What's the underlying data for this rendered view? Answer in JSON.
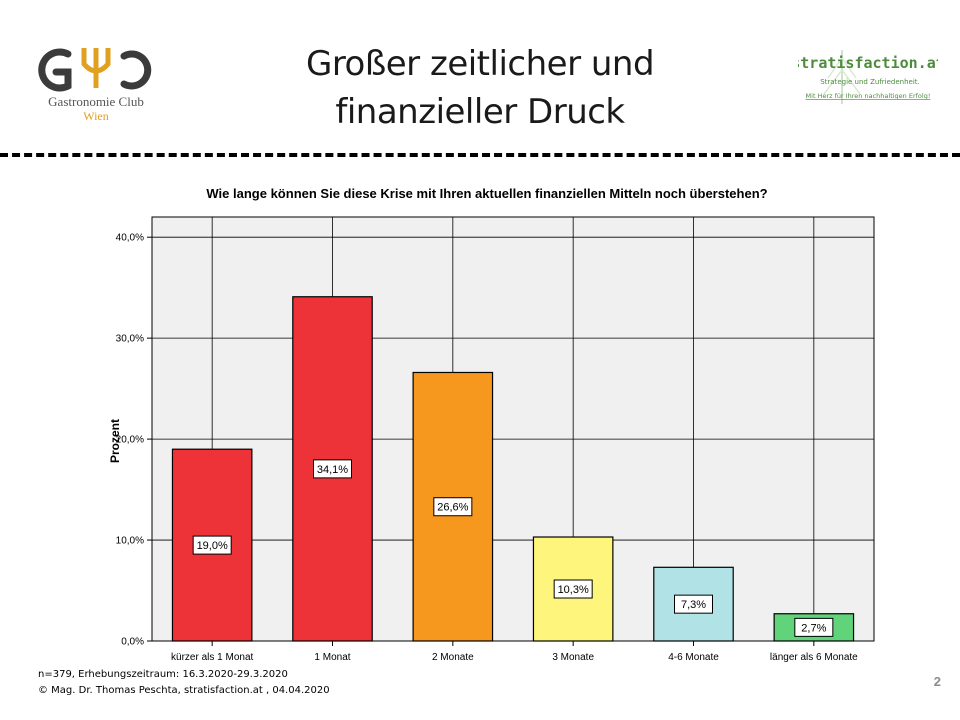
{
  "slide": {
    "title_line1": "Großer zeitlicher und",
    "title_line2": "finanzieller Druck",
    "page_number": "2"
  },
  "logo_left": {
    "name": "Gastronomie Club Wien logo",
    "text_line1": "Gastronomie Club",
    "text_line2": "Wien",
    "color_gold": "#e0a020",
    "color_gray": "#555555"
  },
  "logo_right": {
    "name": "stratisfaction.at logo",
    "brand": "stratisfaction.at",
    "tagline1": "Strategie und Zufriedenheit.",
    "tagline2": "Mit Herz für Ihren nachhaltigen Erfolg!",
    "color_green": "#4c8c3c"
  },
  "footer": {
    "line1": "n=379, Erhebungszeitraum: 16.3.2020-29.3.2020",
    "line2": "© Mag. Dr. Thomas Peschta, stratisfaction.at , 04.04.2020"
  },
  "chart_data": {
    "type": "bar",
    "title": "Wie lange können Sie diese Krise mit Ihren aktuellen finanziellen Mitteln noch überstehen?",
    "xlabel": "",
    "ylabel": "Prozent",
    "categories": [
      "kürzer als 1 Monat",
      "1 Monat",
      "2 Monate",
      "3 Monate",
      "4-6 Monate",
      "länger als 6 Monate"
    ],
    "values": [
      19.0,
      34.1,
      26.6,
      10.3,
      7.3,
      2.7
    ],
    "value_labels": [
      "19,0%",
      "34,1%",
      "26,6%",
      "10,3%",
      "7,3%",
      "2,7%"
    ],
    "colors": [
      "#ee3338",
      "#ee3338",
      "#f6981e",
      "#fef57c",
      "#b1e3e6",
      "#61d37a"
    ],
    "ylim": [
      0,
      42
    ],
    "yticks": [
      0,
      10,
      20,
      30,
      40
    ],
    "ytick_labels": [
      "0,0%",
      "10,0%",
      "20,0%",
      "30,0%",
      "40,0%"
    ],
    "grid": true,
    "plot_background": "#f0f0f0",
    "legend": "none"
  }
}
